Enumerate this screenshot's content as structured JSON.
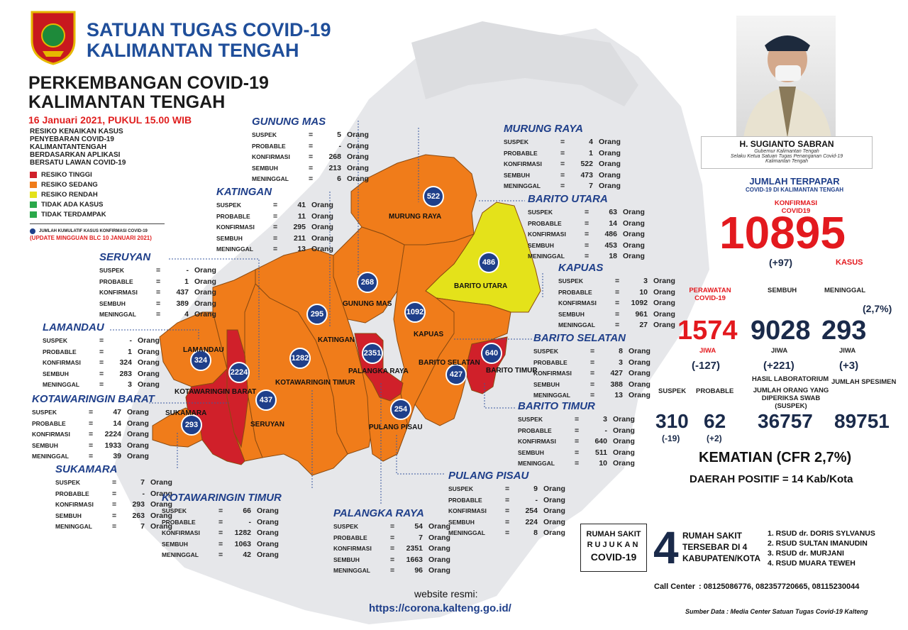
{
  "header": {
    "org_line1": "SATUAN TUGAS COVID-19",
    "org_line2": "KALIMANTAN TENGAH",
    "title_line1": "PERKEMBANGAN COVID-19",
    "title_line2": "KALIMANTAN TENGAH",
    "date": "16 Januari 2021, PUKUL 15.00 WIB"
  },
  "legend": {
    "heading": [
      "RESIKO KENAIKAN KASUS",
      "PENYEBARAN COVID-19",
      "KALIMANTANTENGAH",
      "BERDASARKAN APLIKASI",
      "BERSATU LAWAN COVID-19"
    ],
    "items": [
      {
        "label": "RESIKO TINGGI",
        "color": "#d0202a"
      },
      {
        "label": "RESIKO SEDANG",
        "color": "#f07c1a"
      },
      {
        "label": "RESIKO RENDAH",
        "color": "#e4e21a"
      },
      {
        "label": "TIDAK ADA KASUS",
        "color": "#2aa84a"
      },
      {
        "label": "TIDAK TERDAMPAK",
        "color": "#2aa84a"
      }
    ],
    "dot_note": "JUMLAH KUMULATIF KASUS KONFIRMASI COVID-19",
    "update_note": "(UPDATE MINGGUAN BLC 10 JANUARI 2021)"
  },
  "labels": {
    "suspek": "SUSPEK",
    "probable": "PROBABLE",
    "konfirmasi": "KONFIRMASI",
    "sembuh": "SEMBUH",
    "meninggal": "MENINGGAL",
    "orang": "Orang",
    "eq": "="
  },
  "regions": {
    "gunung_mas": {
      "name": "GUNUNG MAS",
      "suspek": "5",
      "probable": "-",
      "konfirmasi": "268",
      "sembuh": "213",
      "meninggal": "6"
    },
    "murung_raya": {
      "name": "MURUNG RAYA",
      "suspek": "4",
      "probable": "1",
      "konfirmasi": "522",
      "sembuh": "473",
      "meninggal": "7"
    },
    "katingan": {
      "name": "KATINGAN",
      "suspek": "41",
      "probable": "11",
      "konfirmasi": "295",
      "sembuh": "211",
      "meninggal": "13"
    },
    "barito_utara": {
      "name": "BARITO UTARA",
      "suspek": "63",
      "probable": "14",
      "konfirmasi": "486",
      "sembuh": "453",
      "meninggal": "18"
    },
    "seruyan": {
      "name": "SERUYAN",
      "suspek": "-",
      "probable": "1",
      "konfirmasi": "437",
      "sembuh": "389",
      "meninggal": "4"
    },
    "kapuas": {
      "name": "KAPUAS",
      "suspek": "3",
      "probable": "10",
      "konfirmasi": "1092",
      "sembuh": "961",
      "meninggal": "27"
    },
    "lamandau": {
      "name": "LAMANDAU",
      "suspek": "-",
      "probable": "1",
      "konfirmasi": "324",
      "sembuh": "283",
      "meninggal": "3"
    },
    "barito_selatan": {
      "name": "BARITO SELATAN",
      "suspek": "8",
      "probable": "3",
      "konfirmasi": "427",
      "sembuh": "388",
      "meninggal": "13"
    },
    "kobar": {
      "name": "KOTAWARINGIN BARAT",
      "suspek": "47",
      "probable": "14",
      "konfirmasi": "2224",
      "sembuh": "1933",
      "meninggal": "39"
    },
    "barito_timur": {
      "name": "BARITO TIMUR",
      "suspek": "3",
      "probable": "-",
      "konfirmasi": "640",
      "sembuh": "511",
      "meninggal": "10"
    },
    "sukamara": {
      "name": "SUKAMARA",
      "suspek": "7",
      "probable": "-",
      "konfirmasi": "293",
      "sembuh": "263",
      "meninggal": "7"
    },
    "pulang_pisau": {
      "name": "PULANG PISAU",
      "suspek": "9",
      "probable": "-",
      "konfirmasi": "254",
      "sembuh": "224",
      "meninggal": "8"
    },
    "kotim": {
      "name": "KOTAWARINGIN TIMUR",
      "suspek": "66",
      "probable": "-",
      "konfirmasi": "1282",
      "sembuh": "1063",
      "meninggal": "42"
    },
    "palangka_raya": {
      "name": "PALANGKA RAYA",
      "suspek": "54",
      "probable": "7",
      "konfirmasi": "2351",
      "sembuh": "1663",
      "meninggal": "96"
    }
  },
  "map_labels": {
    "murung_raya": "MURUNG RAYA",
    "barito_utara": "BARITO UTARA",
    "gunung_mas": "GUNUNG MAS",
    "katingan": "KATINGAN",
    "kapuas": "KAPUAS",
    "lamandau": "LAMANDAU",
    "kobar": "KOTAWARINGIN BARAT",
    "kotim": "KOTAWARINGIN TIMUR",
    "palangka_raya": "PALANGKA RAYA",
    "barito_selatan": "BARITO SELATAN",
    "barito_timur": "BARITO TIMUR",
    "sukamara": "SUKAMARA",
    "seruyan": "SERUYAN",
    "pulang_pisau": "PULANG PISAU"
  },
  "governor": {
    "name": "H. SUGIANTO SABRAN",
    "role1": "Gubernur Kalimantan Tengah",
    "role2": "Selaku Ketua Satuan Tugas Penanganan Covid-19",
    "role3": "Kalimantan Tengah"
  },
  "summary": {
    "heading": "JUMLAH TERPAPAR",
    "subheading": "COVID-19 DI KALIMANTAN TENGAH",
    "konf_label1": "KONFIRMASI",
    "konf_label2": "COVID19",
    "total": "10895",
    "total_delta": "(+97)",
    "kasus": "KASUS",
    "perawatan_label1": "PERAWATAN",
    "perawatan_label2": "COVID-19",
    "sembuh_label": "SEMBUH",
    "meninggal_label": "MENINGGAL",
    "cfr_small": "(2,7%)",
    "perawatan": "1574",
    "sembuh": "9028",
    "meninggal": "293",
    "jiwa": "JIWA",
    "perawatan_delta": "(-127)",
    "sembuh_delta": "(+221)",
    "meninggal_delta": "(+3)",
    "suspek_label": "SUSPEK",
    "probable_label": "PROBABLE",
    "lab_label": "HASIL LABORATORIUM",
    "spesimen_label": "JUMLAH SPESIMEN",
    "swab_label1": "JUMLAH ORANG YANG",
    "swab_label2": "DIPERIKSA SWAB (SUSPEK)",
    "suspek": "310",
    "probable": "62",
    "swab": "36757",
    "spesimen": "89751",
    "suspek_delta": "(-19)",
    "probable_delta": "(+2)",
    "kematian": "KEMATIAN (CFR 2,7%)",
    "daerah": "DAERAH POSITIF = 14 Kab/Kota"
  },
  "rs": {
    "box1": "RUMAH SAKIT",
    "box2": "RUJUKAN",
    "box3": "COVID-19",
    "count": "4",
    "desc1": "RUMAH SAKIT",
    "desc2": "TERSEBAR DI 4",
    "desc3": "KABUPATEN/KOTA",
    "list": [
      "1. RSUD dr. DORIS SYLVANUS",
      "2. RSUD SULTAN IMANUDIN",
      "3. RSUD dr. MURJANI",
      "4. RSUD MUARA TEWEH"
    ]
  },
  "footer": {
    "website_label": "website resmi:",
    "website": "https://corona.kalteng.go.id/",
    "call_label": "Call Center",
    "call": ": 08125086776, 082357720665, 08115230044",
    "source": "Sumber Data : Media Center Satuan Tugas Covid-19 Kalteng"
  }
}
